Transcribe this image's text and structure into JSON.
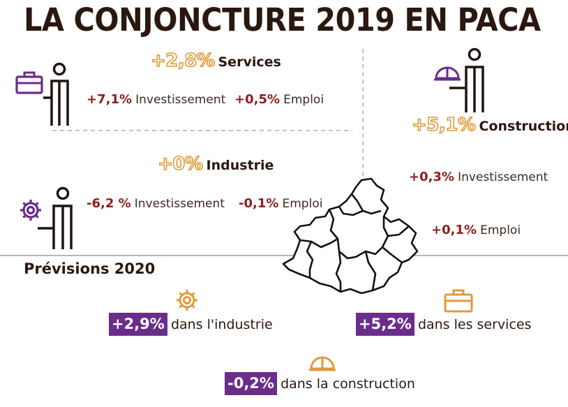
{
  "title": "LA CONJONCTURE 2019 EN PACA",
  "services": {
    "growth": "+2,8%",
    "name": "Services",
    "investissement_value": "+7,1%",
    "investissement_label": "Investissement",
    "emploi_value": "+0,5%",
    "emploi_label": "Emploi"
  },
  "industrie": {
    "growth": "+0%",
    "name": "Industrie",
    "investissement_value": "-6,2 %",
    "investissement_label": "Investissement",
    "emploi_value": "-0,1%",
    "emploi_label": "Emploi"
  },
  "construction": {
    "growth": "+5,1%",
    "name": "Construction",
    "investissement_value": "+0,3%",
    "investissement_label": "Investissement",
    "emploi_value": "+0,1%",
    "emploi_label": "Emploi"
  },
  "previsions": {
    "title": "Prévisions 2020",
    "industrie_value": "+2,9%",
    "industrie_label": "dans l'industrie",
    "services_value": "+5,2%",
    "services_label": "dans les services",
    "construction_value": "-0,2%",
    "construction_label": "dans la construction"
  },
  "colors": {
    "orange": "#e09a3a",
    "purple": "#6a2d8a",
    "dark_red": "#8e1c1c",
    "dark_brown": "#2a1810"
  }
}
